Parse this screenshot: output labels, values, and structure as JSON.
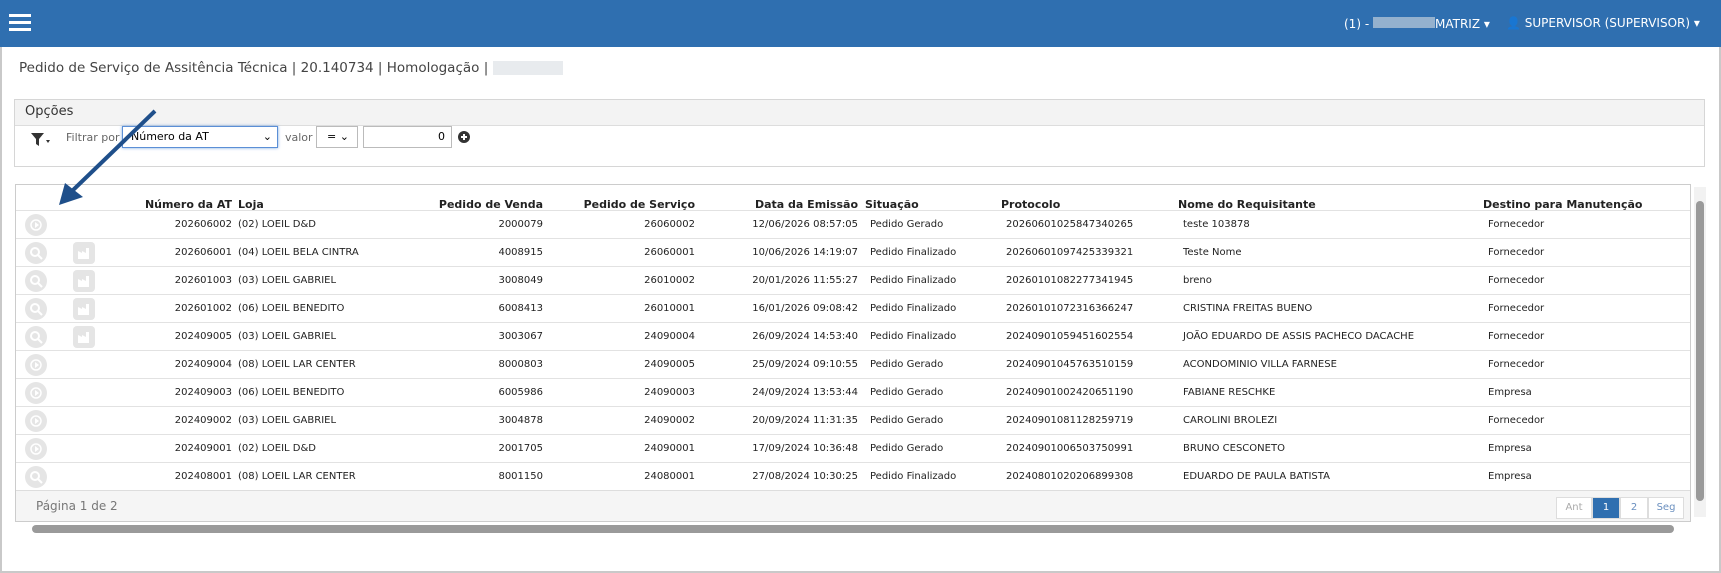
{
  "header": {
    "company_prefix": "(1) -",
    "company": "MATRIZ",
    "user": "SUPERVISOR (SUPERVISOR)"
  },
  "breadcrumb": "Pedido de Serviço de Assitência Técnica | 20.140734 | Homologação |",
  "options": {
    "title": "Opções",
    "filter_label": "Filtrar por",
    "filter_field": "Número da AT",
    "value_label": "valor",
    "operator": "=",
    "value": "0"
  },
  "table": {
    "columns": [
      "Número da AT",
      "Loja",
      "Pedido de Venda",
      "Pedido de Serviço",
      "Data da Emissão",
      "Situação",
      "Protocolo",
      "Nome do Requisitante",
      "Destino para Manutenção"
    ],
    "rows": [
      [
        "202606002",
        "(02) LOEIL D&D",
        "2000079",
        "26060002",
        "12/06/2026 08:57:05",
        "Pedido Gerado",
        "20260601025847340265",
        "teste 103878",
        "Fornecedor"
      ],
      [
        "202606001",
        "(04) LOEIL BELA CINTRA",
        "4008915",
        "26060001",
        "10/06/2026 14:19:07",
        "Pedido Finalizado",
        "20260601097425339321",
        "Teste Nome",
        "Fornecedor"
      ],
      [
        "202601003",
        "(03) LOEIL GABRIEL",
        "3008049",
        "26010002",
        "20/01/2026 11:55:27",
        "Pedido Finalizado",
        "20260101082277341945",
        "breno",
        "Fornecedor"
      ],
      [
        "202601002",
        "(06) LOEIL BENEDITO",
        "6008413",
        "26010001",
        "16/01/2026 09:08:42",
        "Pedido Finalizado",
        "20260101072316366247",
        "CRISTINA FREITAS BUENO",
        "Fornecedor"
      ],
      [
        "202409005",
        "(03) LOEIL GABRIEL",
        "3003067",
        "24090004",
        "26/09/2024 14:53:40",
        "Pedido Finalizado",
        "20240901059451602554",
        "JOÃO EDUARDO DE ASSIS PACHECO DACACHE",
        "Fornecedor"
      ],
      [
        "202409004",
        "(08) LOEIL LAR CENTER",
        "8000803",
        "24090005",
        "25/09/2024 09:10:55",
        "Pedido Gerado",
        "20240901045763510159",
        "ACONDOMINIO VILLA FARNESE",
        "Fornecedor"
      ],
      [
        "202409003",
        "(06) LOEIL BENEDITO",
        "6005986",
        "24090003",
        "24/09/2024 13:53:44",
        "Pedido Gerado",
        "20240901002420651190",
        "FABIANE RESCHKE",
        "Empresa"
      ],
      [
        "202409002",
        "(03) LOEIL GABRIEL",
        "3004878",
        "24090002",
        "20/09/2024 11:31:35",
        "Pedido Gerado",
        "20240901081128259719",
        "CAROLINI BROLEZI",
        "Fornecedor"
      ],
      [
        "202409001",
        "(02) LOEIL D&D",
        "2001705",
        "24090001",
        "17/09/2024 10:36:48",
        "Pedido Gerado",
        "20240901006503750991",
        "BRUNO CESCONETO",
        "Empresa"
      ],
      [
        "202408001",
        "(08) LOEIL LAR CENTER",
        "8001150",
        "24080001",
        "27/08/2024 10:30:25",
        "Pedido Finalizado",
        "20240801020206899308",
        "EDUARDO DE PAULA BATISTA",
        "Empresa"
      ]
    ]
  },
  "pagination": {
    "summary": "Página 1 de 2",
    "prev": "Ant",
    "pages": [
      "1",
      "2"
    ],
    "next": "Seg"
  }
}
